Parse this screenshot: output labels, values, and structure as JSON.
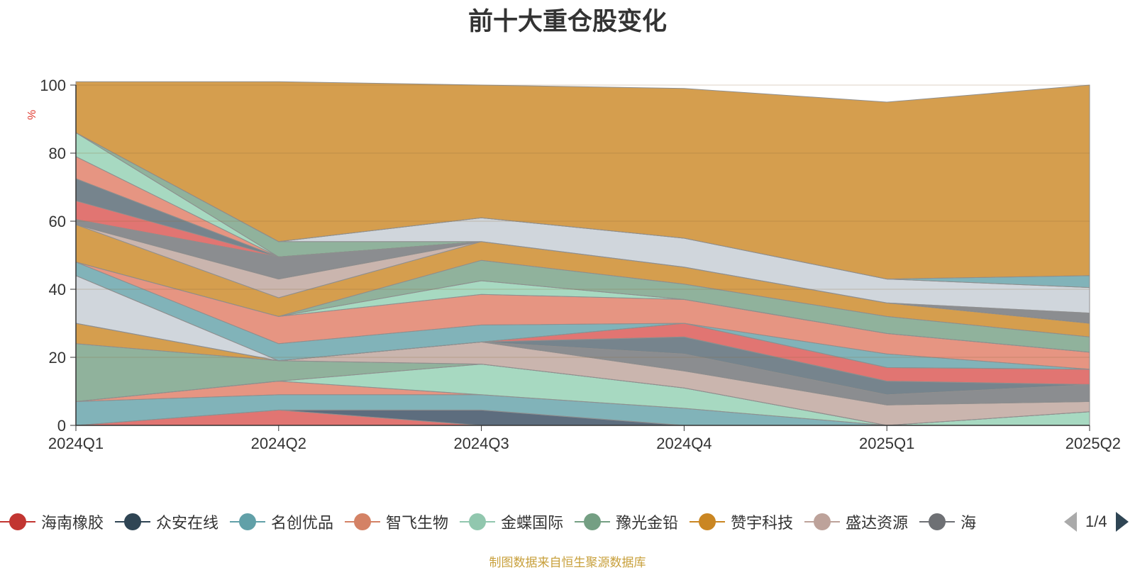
{
  "chart_data": {
    "type": "area",
    "title": "前十大重仓股变化",
    "ylabel": "%",
    "ylim": [
      0,
      100
    ],
    "yticks": [
      0,
      20,
      40,
      60,
      80,
      100
    ],
    "categories": [
      "2024Q1",
      "2024Q2",
      "2024Q3",
      "2024Q4",
      "2025Q1",
      "2025Q2"
    ],
    "series": [
      {
        "name": "海南橡胶",
        "color": "#d9534f",
        "values": [
          0,
          4.5,
          0,
          0,
          0,
          0
        ]
      },
      {
        "name": "众安在线",
        "color": "#34495e",
        "values": [
          0,
          0,
          4.5,
          0,
          0,
          0
        ]
      },
      {
        "name": "名创优品",
        "color": "#61a0a8",
        "values": [
          7,
          4.5,
          4.5,
          5,
          0,
          0
        ]
      },
      {
        "name": "智飞生物",
        "color": "#e07b63",
        "values": [
          0,
          4,
          0,
          0,
          0,
          0
        ]
      },
      {
        "name": "金蝶国际",
        "color": "#91d0b2",
        "values": [
          0,
          0,
          9,
          6,
          0,
          4
        ]
      },
      {
        "name": "豫光金铅",
        "color": "#749f83",
        "values": [
          17,
          6,
          0,
          0,
          0,
          0
        ]
      },
      {
        "name": "赞宇科技",
        "color": "#ca8622",
        "values": [
          6,
          0,
          0,
          0,
          0,
          0
        ]
      },
      {
        "name": "盛达资源",
        "color": "#bda29a",
        "values": [
          0,
          0,
          6.5,
          5,
          6,
          3
        ]
      },
      {
        "name": "",
        "color": "#6e7074",
        "values": [
          0,
          0,
          0,
          5,
          3,
          5
        ]
      },
      {
        "name": "",
        "color": "#546570",
        "values": [
          0,
          0,
          0,
          5,
          4,
          0
        ]
      },
      {
        "name": "",
        "color": "#d9534f",
        "values": [
          0,
          0,
          0,
          4,
          4,
          4.5
        ]
      },
      {
        "name": "",
        "color": "#c4ccd3",
        "values": [
          14,
          0,
          0,
          0,
          0,
          0
        ]
      },
      {
        "name": "",
        "color": "#61a0a8",
        "values": [
          4,
          5,
          5,
          0,
          4,
          0
        ]
      },
      {
        "name": "",
        "color": "#e07b63",
        "values": [
          0,
          8,
          9,
          7,
          6,
          5
        ]
      },
      {
        "name": "",
        "color": "#91d0b2",
        "values": [
          0,
          0,
          4,
          0,
          0,
          0
        ]
      },
      {
        "name": "",
        "color": "#749f83",
        "values": [
          0,
          0,
          6,
          4.5,
          5,
          4.5
        ]
      },
      {
        "name": "",
        "color": "#ca8622",
        "values": [
          11,
          5.5,
          5.5,
          5,
          4,
          4
        ]
      },
      {
        "name": "",
        "color": "#bda29a",
        "values": [
          0,
          5.5,
          0,
          0,
          0,
          0
        ]
      },
      {
        "name": "",
        "color": "#6e7074",
        "values": [
          1.5,
          6.5,
          0,
          0,
          0,
          3
        ]
      },
      {
        "name": "",
        "color": "#d9534f",
        "values": [
          5.5,
          0,
          0,
          0,
          0,
          0
        ]
      },
      {
        "name": "",
        "color": "#546570",
        "values": [
          6.5,
          0,
          0,
          0,
          0,
          0
        ]
      },
      {
        "name": "",
        "color": "#e07b63",
        "values": [
          6.5,
          0,
          0,
          0,
          0,
          0
        ]
      },
      {
        "name": "",
        "color": "#91d0b2",
        "values": [
          7,
          0,
          0,
          0,
          0,
          0
        ]
      },
      {
        "name": "",
        "color": "#749f83",
        "values": [
          0,
          4.5,
          0,
          0,
          0,
          0
        ]
      },
      {
        "name": "",
        "color": "#c4ccd3",
        "values": [
          0,
          0,
          7,
          8.5,
          7,
          7.5
        ]
      },
      {
        "name": "",
        "color": "#61a0a8",
        "values": [
          0,
          0,
          0,
          0,
          0,
          3.5
        ]
      },
      {
        "name": "",
        "color": "#ca8622",
        "values": [
          15,
          47,
          39,
          44,
          52,
          56
        ]
      }
    ]
  },
  "legend": {
    "items": [
      {
        "label": "海南橡胶",
        "color": "#c23531"
      },
      {
        "label": "众安在线",
        "color": "#2f4554"
      },
      {
        "label": "名创优品",
        "color": "#61a0a8"
      },
      {
        "label": "智飞生物",
        "color": "#d48265"
      },
      {
        "label": "金蝶国际",
        "color": "#91c7ae"
      },
      {
        "label": "豫光金铅",
        "color": "#749f83"
      },
      {
        "label": "赞宇科技",
        "color": "#ca8622"
      },
      {
        "label": "盛达资源",
        "color": "#bda29a"
      },
      {
        "label": "海",
        "color": "#6e7074"
      }
    ],
    "pager_text": "1/4"
  },
  "source_note": "制图数据来自恒生聚源数据库"
}
